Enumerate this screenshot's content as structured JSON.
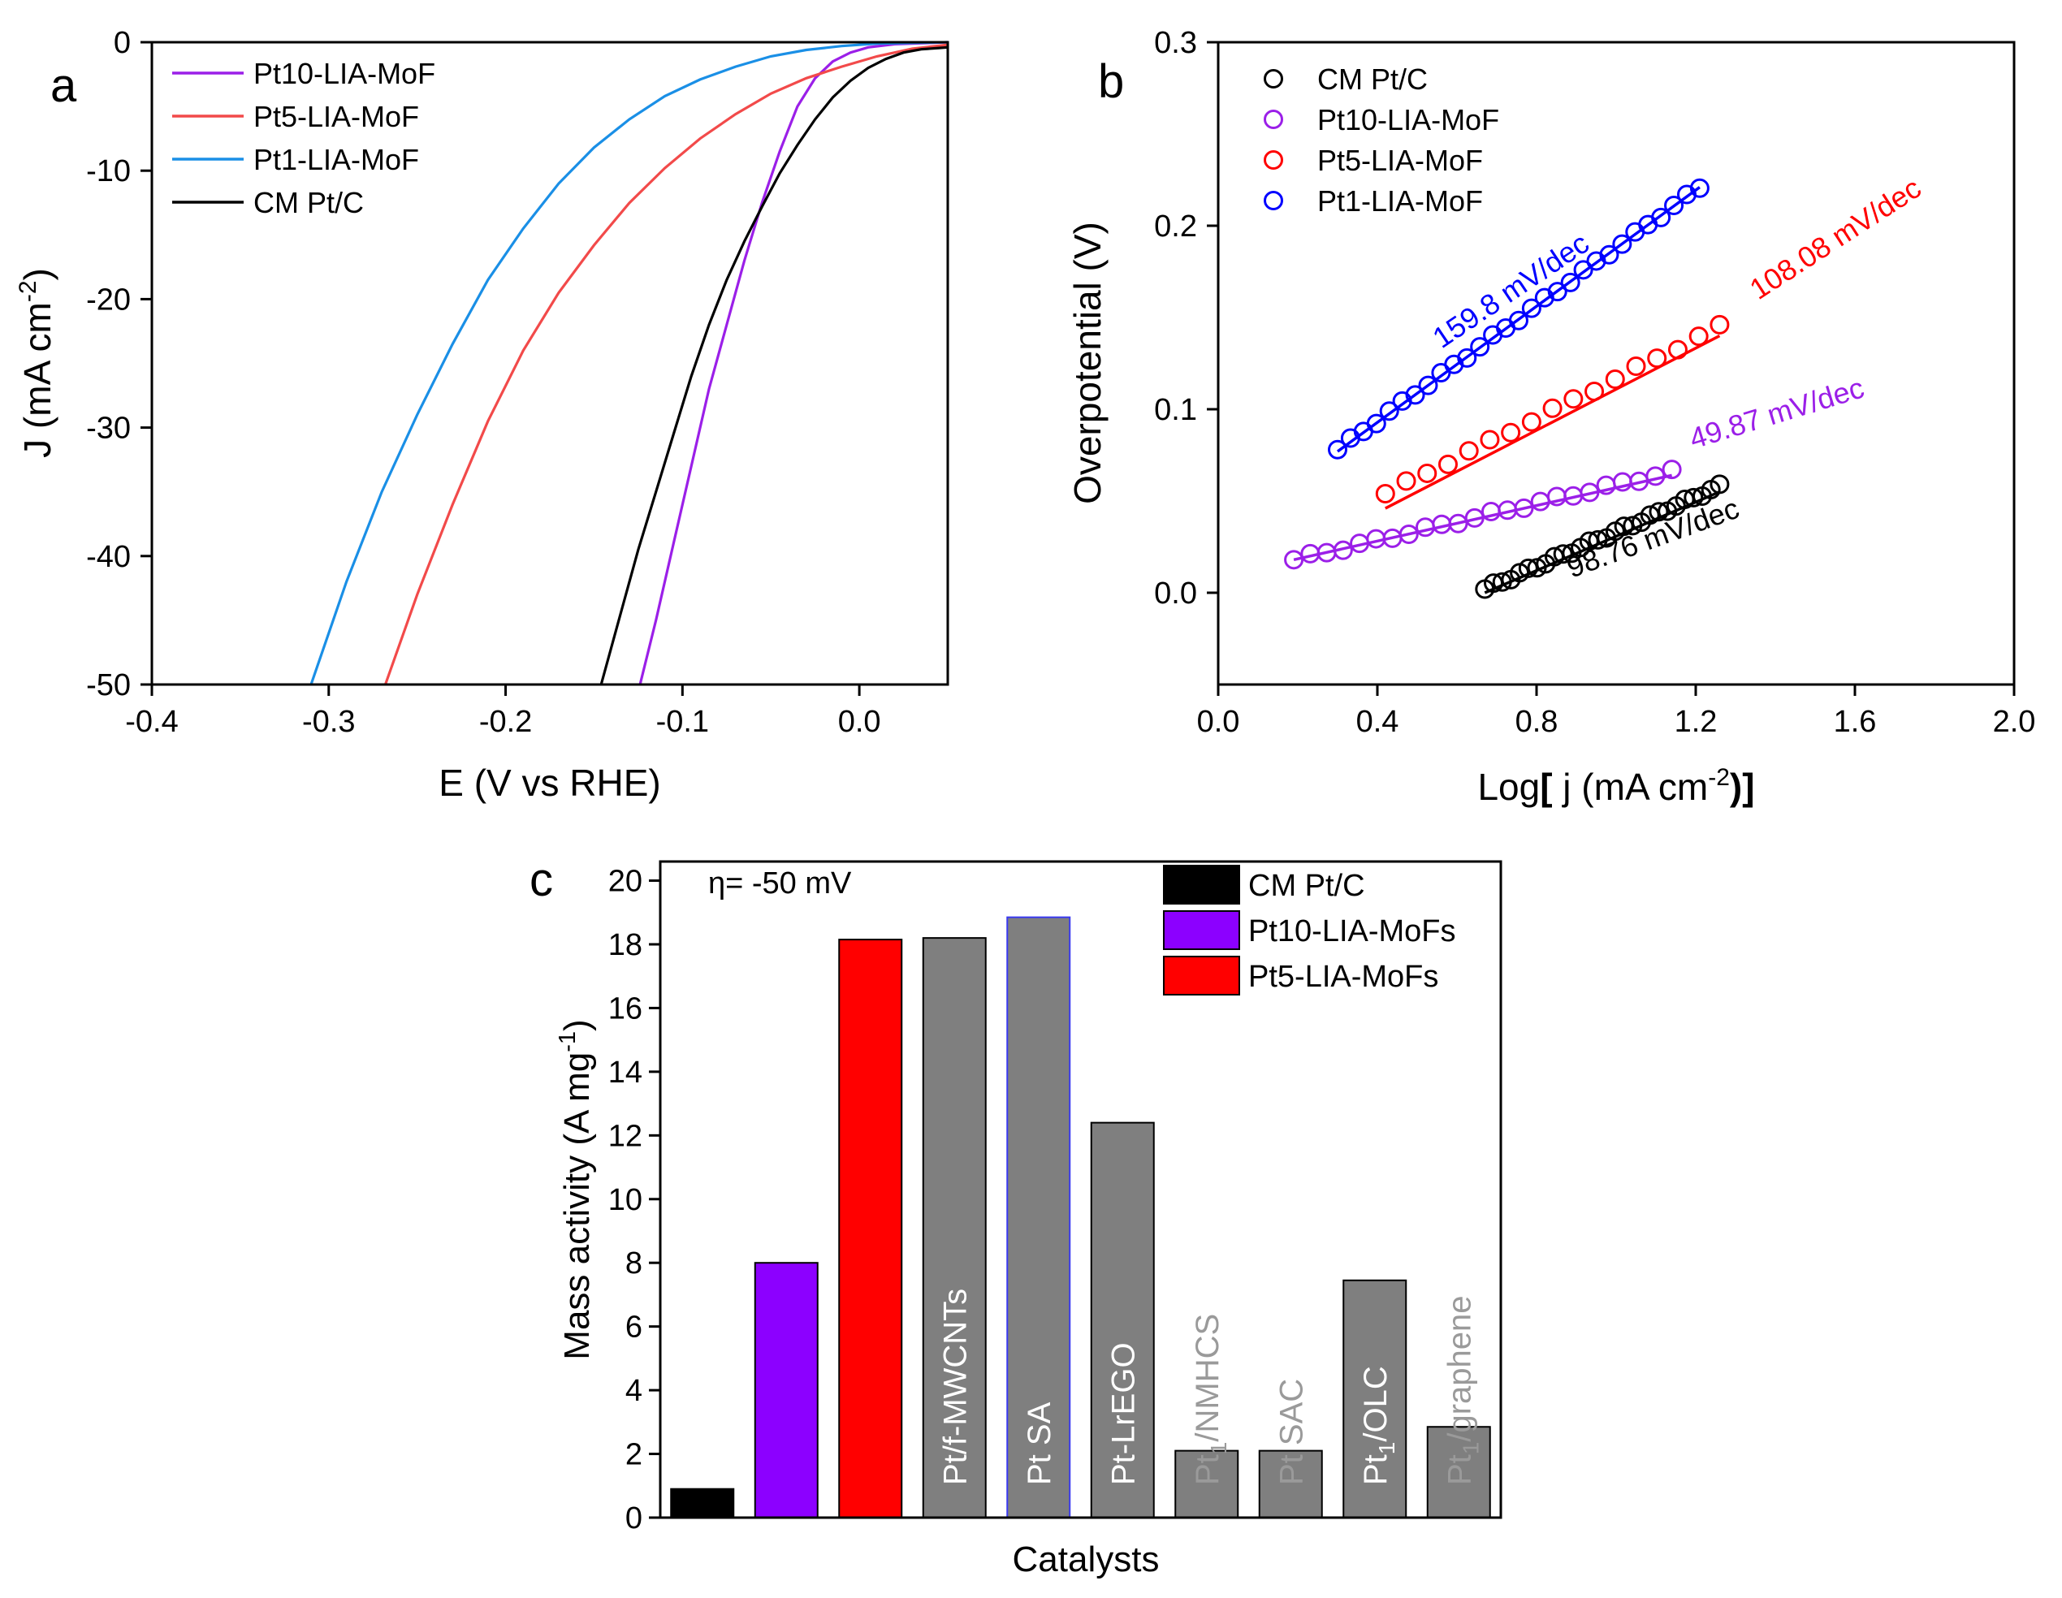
{
  "chart_data": [
    {
      "panel_label": "a",
      "type": "line",
      "xlabel": "E (V vs RHE)",
      "ylabel": "J (mA cm",
      "ylabel_sup": "-2",
      "ylabel_close": ")",
      "xlim": [
        -0.4,
        0.05
      ],
      "ylim": [
        -50,
        0
      ],
      "xticks": [
        -0.4,
        -0.3,
        -0.2,
        -0.1,
        0.0
      ],
      "xtick_labels": [
        "-0.4",
        "-0.3",
        "-0.2",
        "-0.1",
        "0.0"
      ],
      "yticks": [
        0,
        -10,
        -20,
        -30,
        -40,
        -50
      ],
      "ytick_labels": [
        "0",
        "-10",
        "-20",
        "-30",
        "-40",
        "-50"
      ],
      "legend_position": "top-left",
      "series": [
        {
          "name": "Pt10-LIA-MoF",
          "color": "#9b1fe8",
          "points": [
            [
              -0.124,
              -50
            ],
            [
              -0.115,
              -45
            ],
            [
              -0.105,
              -39
            ],
            [
              -0.095,
              -33
            ],
            [
              -0.085,
              -27
            ],
            [
              -0.075,
              -22
            ],
            [
              -0.065,
              -17
            ],
            [
              -0.055,
              -12.5
            ],
            [
              -0.045,
              -8.5
            ],
            [
              -0.035,
              -5
            ],
            [
              -0.025,
              -2.8
            ],
            [
              -0.015,
              -1.5
            ],
            [
              -0.005,
              -0.8
            ],
            [
              0.005,
              -0.4
            ],
            [
              0.02,
              -0.15
            ],
            [
              0.05,
              0
            ]
          ]
        },
        {
          "name": "Pt5-LIA-MoF",
          "color": "#f24a4a",
          "points": [
            [
              -0.268,
              -50
            ],
            [
              -0.25,
              -43
            ],
            [
              -0.23,
              -36
            ],
            [
              -0.21,
              -29.5
            ],
            [
              -0.19,
              -24
            ],
            [
              -0.17,
              -19.5
            ],
            [
              -0.15,
              -15.8
            ],
            [
              -0.13,
              -12.5
            ],
            [
              -0.11,
              -9.8
            ],
            [
              -0.09,
              -7.5
            ],
            [
              -0.07,
              -5.6
            ],
            [
              -0.05,
              -4
            ],
            [
              -0.03,
              -2.8
            ],
            [
              -0.01,
              -1.9
            ],
            [
              0.01,
              -1.1
            ],
            [
              0.03,
              -0.5
            ],
            [
              0.05,
              -0.2
            ]
          ]
        },
        {
          "name": "Pt1-LIA-MoF",
          "color": "#1a8fe6",
          "points": [
            [
              -0.31,
              -50
            ],
            [
              -0.29,
              -42
            ],
            [
              -0.27,
              -35
            ],
            [
              -0.25,
              -29
            ],
            [
              -0.23,
              -23.5
            ],
            [
              -0.21,
              -18.5
            ],
            [
              -0.19,
              -14.5
            ],
            [
              -0.17,
              -11
            ],
            [
              -0.15,
              -8.2
            ],
            [
              -0.13,
              -6
            ],
            [
              -0.11,
              -4.2
            ],
            [
              -0.09,
              -2.9
            ],
            [
              -0.07,
              -1.9
            ],
            [
              -0.05,
              -1.1
            ],
            [
              -0.03,
              -0.6
            ],
            [
              -0.01,
              -0.3
            ],
            [
              0.01,
              -0.1
            ],
            [
              0.05,
              0
            ]
          ]
        },
        {
          "name": "CM Pt/C",
          "color": "#000000",
          "points": [
            [
              -0.146,
              -50
            ],
            [
              -0.135,
              -44.5
            ],
            [
              -0.125,
              -39.5
            ],
            [
              -0.115,
              -35
            ],
            [
              -0.105,
              -30.5
            ],
            [
              -0.095,
              -26
            ],
            [
              -0.085,
              -22
            ],
            [
              -0.075,
              -18.5
            ],
            [
              -0.065,
              -15.5
            ],
            [
              -0.055,
              -12.8
            ],
            [
              -0.045,
              -10.2
            ],
            [
              -0.035,
              -8
            ],
            [
              -0.025,
              -6
            ],
            [
              -0.015,
              -4.3
            ],
            [
              -0.005,
              -3
            ],
            [
              0.005,
              -2
            ],
            [
              0.015,
              -1.3
            ],
            [
              0.025,
              -0.8
            ],
            [
              0.035,
              -0.55
            ],
            [
              0.045,
              -0.45
            ],
            [
              0.05,
              -0.4
            ]
          ]
        }
      ]
    },
    {
      "panel_label": "b",
      "type": "scatter",
      "xlabel_pre": "Log",
      "xlabel_open": "[",
      "xlabel_mid": " j (mA cm",
      "xlabel_sup": "-2",
      "xlabel_close": ")]",
      "ylabel": "Overpotential (V)",
      "xlim": [
        0.0,
        2.0
      ],
      "ylim": [
        -0.05,
        0.3
      ],
      "xticks": [
        0.0,
        0.4,
        0.8,
        1.2,
        1.6,
        2.0
      ],
      "xtick_labels": [
        "0.0",
        "0.4",
        "0.8",
        "1.2",
        "1.6",
        "2.0"
      ],
      "yticks": [
        0.0,
        0.1,
        0.2,
        0.3
      ],
      "ytick_labels": [
        "0.0",
        "0.1",
        "0.2",
        "0.3"
      ],
      "legend_position": "top-left",
      "series": [
        {
          "name": "CM Pt/C",
          "color": "#000000",
          "x_start": 0.67,
          "x_end": 1.26,
          "y_start": 0.002,
          "y_end": 0.058,
          "n_points": 28,
          "fit": {
            "x0": 0.67,
            "x1": 1.26,
            "y0": 0.0,
            "y1": 0.055
          },
          "slope_label": "98.76 mV/dec",
          "label_angle": -20
        },
        {
          "name": "Pt10-LIA-MoF",
          "color": "#9b1fe8",
          "x_start": 0.19,
          "x_end": 1.14,
          "y_start": 0.018,
          "y_end": 0.066,
          "n_points": 24,
          "fit": {
            "x0": 0.19,
            "x1": 1.14,
            "y0": 0.018,
            "y1": 0.064
          },
          "slope_label": "49.87 mV/dec",
          "label_angle": -17
        },
        {
          "name": "Pt5-LIA-MoF",
          "color": "#ff0000",
          "x_start": 0.42,
          "x_end": 1.26,
          "y_start": 0.054,
          "y_end": 0.145,
          "n_points": 17,
          "fit": {
            "x0": 0.42,
            "x1": 1.26,
            "y0": 0.046,
            "y1": 0.14
          },
          "slope_label": "108.08 mV/dec",
          "label_angle": -33
        },
        {
          "name": "Pt1-LIA-MoF",
          "color": "#0000ff",
          "x_start": 0.3,
          "x_end": 1.21,
          "y_start": 0.078,
          "y_end": 0.221,
          "n_points": 29,
          "fit": {
            "x0": 0.3,
            "x1": 1.21,
            "y0": 0.077,
            "y1": 0.221
          },
          "slope_label": "159.8 mV/dec",
          "label_angle": -34
        }
      ]
    },
    {
      "panel_label": "c",
      "type": "bar",
      "title": "η= -50 mV",
      "xlabel": "Catalysts",
      "ylabel": "Mass activity (A mg",
      "ylabel_sup": "-1",
      "ylabel_close": ")",
      "ylim": [
        0,
        20.6
      ],
      "yticks": [
        0,
        2,
        4,
        6,
        8,
        10,
        12,
        14,
        16,
        18,
        20
      ],
      "ytick_labels": [
        "0",
        "2",
        "4",
        "6",
        "8",
        "10",
        "12",
        "14",
        "16",
        "18",
        "20"
      ],
      "legend_position": "top-right",
      "legend": [
        {
          "name": "CM Pt/C",
          "color": "#000000"
        },
        {
          "name": "Pt10-LIA-MoFs",
          "color": "#8c00ff"
        },
        {
          "name": "Pt5-LIA-MoFs",
          "color": "#ff0000"
        }
      ],
      "bars": [
        {
          "label": "",
          "value": 0.9,
          "color": "#000000",
          "label_color": "#ffffff"
        },
        {
          "label": "",
          "value": 8.0,
          "color": "#8c00ff",
          "label_color": "#ffffff"
        },
        {
          "label": "",
          "value": 18.15,
          "color": "#ff0000",
          "label_color": "#ffffff"
        },
        {
          "label": "Pt/f-MWCNTs",
          "value": 18.2,
          "color": "#7f7f7f",
          "label_color": "#ffffff"
        },
        {
          "label": "Pt SA",
          "value": 18.85,
          "color": "#7f7f7f",
          "label_color": "#ffffff",
          "edge": "#3a3af0"
        },
        {
          "label": "Pt-LrEGO",
          "value": 12.4,
          "color": "#7f7f7f",
          "label_color": "#ffffff"
        },
        {
          "label": "Pt",
          "label_sub": "1",
          "label_rest": "/NMHCS",
          "value": 2.1,
          "color": "#7f7f7f",
          "label_color": "#9a9a9a"
        },
        {
          "label": "Pt SAC",
          "value": 2.1,
          "color": "#7f7f7f",
          "label_color": "#9a9a9a"
        },
        {
          "label": "Pt",
          "label_sub": "1",
          "label_rest": "/OLC",
          "value": 7.45,
          "color": "#7f7f7f",
          "label_color": "#ffffff"
        },
        {
          "label": "Pt",
          "label_sub": "1",
          "label_rest": "/graphene",
          "value": 2.85,
          "color": "#7f7f7f",
          "label_color": "#9a9a9a"
        }
      ]
    }
  ]
}
